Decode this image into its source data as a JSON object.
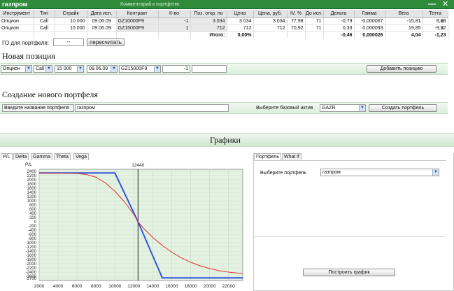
{
  "window": {
    "title": "газпром",
    "comment_label": "Комментарий к портфелю",
    "minimize_glyph": "—",
    "close_glyph": "✕"
  },
  "table": {
    "headers": [
      "Инструмент",
      "Тип",
      "Страйк",
      "Дата исп.",
      "Контракт",
      "К-во",
      "Поз. откр. по",
      "Цена",
      "Цена, руб.",
      "IV, %",
      "До исп.",
      "Дельта",
      "Гамма",
      "Вега",
      "Тетта"
    ],
    "rows": [
      [
        "Опцион",
        "Call",
        "10 000",
        "09.06.09",
        "GZ10000F9",
        "-1",
        "3 034",
        "3 034",
        "3 034",
        "77,98",
        "71",
        "-0,79",
        "-0,000067",
        "-15,81",
        "8,68"
      ],
      [
        "Опцион",
        "Call",
        "15 000",
        "09.06.09",
        "GZ15000F9",
        "1",
        "712",
        "712",
        "712",
        "70,92",
        "71",
        "0,33",
        "0,000093",
        "19,85",
        "-9,92"
      ]
    ],
    "total": {
      "label": "Итого:",
      "pct": "0,00%",
      "delta": "-0,46",
      "gamma": "0,000026",
      "vega": "4,04",
      "theta": "-1,23"
    },
    "remove_glyph": "✕"
  },
  "go": {
    "label": "ГО для портфеля:",
    "value": "--",
    "recalc_button": "пересчитать"
  },
  "new_position": {
    "title": "Новая позиция",
    "instrument": "Опцион",
    "type": "Call",
    "strike": "15 000",
    "date": "09.06.09",
    "contract": "GZ15000F9",
    "quantity": "-1",
    "price": "",
    "add_button": "Добавить позицию"
  },
  "new_portfolio": {
    "title": "Создание нового портфеля",
    "name_label": "Введите название портфеля",
    "name_value": "газпром",
    "asset_label": "Выберите базовый актив",
    "asset_value": "GAZR",
    "create_button": "Создать портфель"
  },
  "graphs": {
    "title": "Графики",
    "tabs": [
      "P/L",
      "Delta",
      "Gamma",
      "Theta",
      "Vega"
    ],
    "right_tabs": [
      "Портфель",
      "What if"
    ],
    "portfolio_label": "Выберите портфель",
    "portfolio_value": "газпром",
    "build_button": "Построить график",
    "arrow_glyph": "▼"
  },
  "chart_data": {
    "type": "line",
    "ylabel": "P/L",
    "xlim": [
      2000,
      23500
    ],
    "ylim": [
      -2800,
      2500
    ],
    "x_ticks": [
      2000,
      4000,
      6000,
      8000,
      10000,
      12000,
      14000,
      16000,
      18000,
      20000,
      22000
    ],
    "x_tick_labels": [
      "2000",
      "4000",
      "6000",
      "8000",
      "10000",
      "12000",
      "14000",
      "16000",
      "18000",
      "20000",
      "22000"
    ],
    "y_ticks": [
      2400,
      2200,
      2000,
      1800,
      1600,
      1400,
      1200,
      1000,
      800,
      600,
      400,
      200,
      0,
      -200,
      -400,
      -600,
      -800,
      -1000,
      -1200,
      -1400,
      -1600,
      -1800,
      -2000,
      -2200,
      -2400,
      -2600,
      -2700
    ],
    "y_tick_labels": [
      "2400",
      "2200",
      "2000",
      "1800",
      "1600",
      "1400",
      "1200",
      "1000",
      "800",
      "600",
      "400",
      "200",
      "0",
      "-200",
      "-400",
      "-600",
      "-800",
      "-1000",
      "-1200",
      "-1400",
      "-1600",
      "-1800",
      "-2000",
      "-2200",
      "-2400",
      "-2600",
      "-2700"
    ],
    "marker_x": 12440,
    "marker_label": "12440",
    "series": [
      {
        "color": "#3355dd",
        "x": [
          2000,
          10000,
          12440,
          15000,
          23500
        ],
        "y": [
          2322,
          2322,
          0,
          -2678,
          -2678
        ]
      },
      {
        "color": "#dd3333",
        "x": [
          2000,
          4000,
          6000,
          7000,
          8000,
          9000,
          10000,
          11000,
          12000,
          12440,
          13000,
          14000,
          15000,
          16000,
          17000,
          18000,
          19000,
          20000,
          21000,
          22000,
          23000,
          23500
        ],
        "y": [
          2322,
          2320,
          2300,
          2250,
          2120,
          1850,
          1450,
          950,
          350,
          0,
          -300,
          -750,
          -1130,
          -1450,
          -1720,
          -1930,
          -2100,
          -2230,
          -2330,
          -2400,
          -2450,
          -2470
        ]
      }
    ],
    "grid": true,
    "background": "#e4f2e2"
  }
}
